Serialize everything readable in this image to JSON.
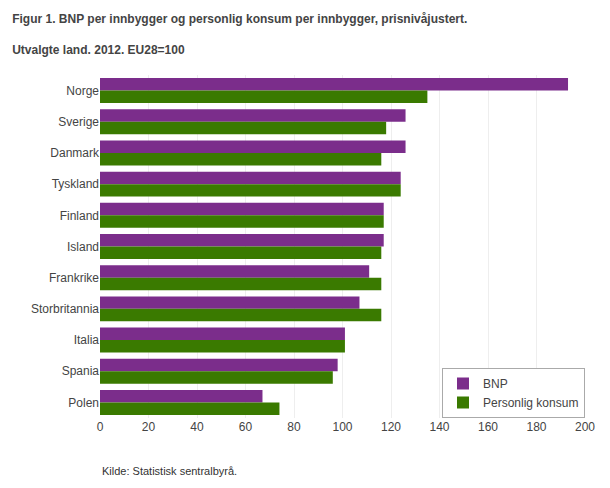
{
  "chart_data": {
    "type": "bar",
    "orientation": "horizontal",
    "title": "Figur 1. BNP per innbygger og personlig konsum per innbygger, prisnivåjustert.",
    "subtitle": "Utvalgte land. 2012. EU28=100",
    "categories": [
      "Norge",
      "Sverige",
      "Danmark",
      "Tyskland",
      "Finland",
      "Island",
      "Frankrike",
      "Storbritannia",
      "Italia",
      "Spania",
      "Polen"
    ],
    "series": [
      {
        "name": "BNP",
        "color": "#7B2D8B",
        "values": [
          193,
          126,
          126,
          124,
          117,
          117,
          111,
          107,
          101,
          98,
          67
        ]
      },
      {
        "name": "Personlig konsum",
        "color": "#3A7A00",
        "values": [
          135,
          118,
          116,
          124,
          117,
          116,
          116,
          116,
          101,
          96,
          74
        ]
      }
    ],
    "xlim": [
      0,
      200
    ],
    "xticks": [
      0,
      20,
      40,
      60,
      80,
      100,
      120,
      140,
      160,
      180,
      200
    ],
    "grid": true,
    "legend": "lower right",
    "annotations": [
      "Kilde: Statistisk sentralbyrå."
    ]
  }
}
